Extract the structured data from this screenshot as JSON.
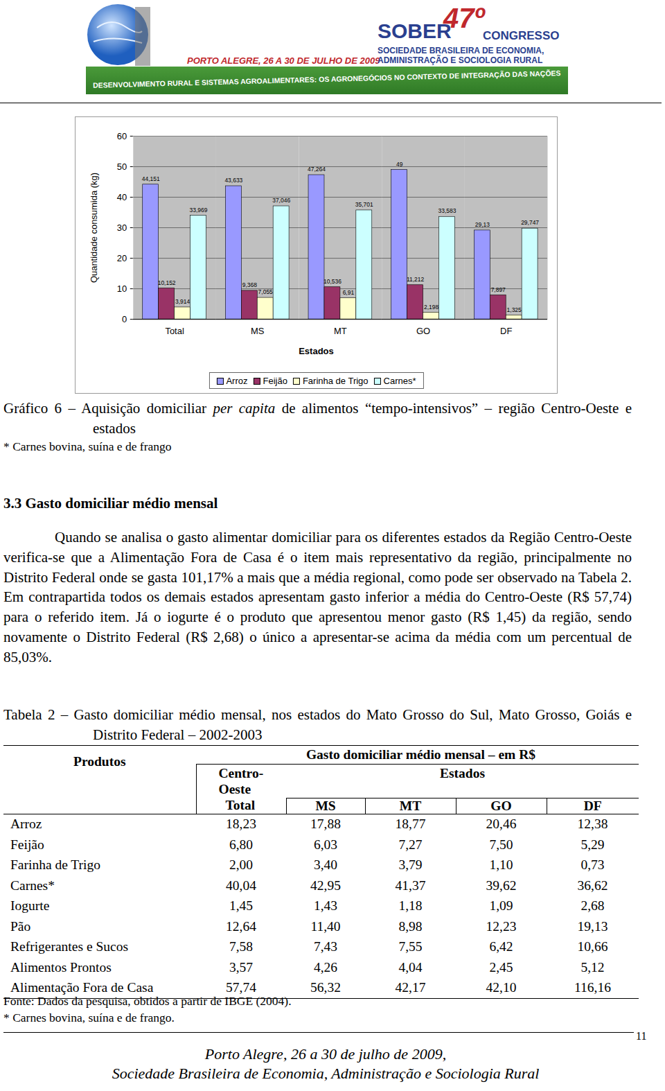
{
  "header": {
    "congress": "SOBER",
    "edition": "47º",
    "event": "CONGRESSO",
    "society": [
      "SOCIEDADE BRASILEIRA DE ECONOMIA,",
      "ADMINISTRAÇÃO E SOCIOLOGIA RURAL"
    ],
    "place_date": "PORTO ALEGRE, 26 A 30 DE JULHO DE 2009",
    "theme": "DESENVOLVIMENTO RURAL E SISTEMAS AGROALIMENTARES: OS AGRONEGÓCIOS NO CONTEXTO DE INTEGRAÇÃO DAS NAÇÕES"
  },
  "chart_data": {
    "type": "bar",
    "x_label": "Estados",
    "y_label": "Quantidade consumida (kg)",
    "categories": [
      "Total",
      "MS",
      "MT",
      "GO",
      "DF"
    ],
    "series": [
      {
        "name": "Arroz",
        "color": "#9999ff",
        "values": [
          44.151,
          43.633,
          47.264,
          49,
          29.13
        ],
        "value_labels": [
          "44,151",
          "43,633",
          "47,264",
          "49",
          "29,13"
        ]
      },
      {
        "name": "Feijão",
        "color": "#993366",
        "values": [
          10.152,
          9.368,
          10.536,
          11.212,
          7.897
        ],
        "value_labels": [
          "10,152",
          "9,368",
          "10,536",
          "11,212",
          "7,897"
        ]
      },
      {
        "name": "Farinha de Trigo",
        "color": "#ffffcc",
        "values": [
          3.914,
          7.055,
          6.91,
          2.198,
          1.325
        ],
        "value_labels": [
          "3,914",
          "7,055",
          "6,91",
          "2,198",
          "1,325"
        ]
      },
      {
        "name": "Carnes*",
        "color": "#ccffff",
        "values": [
          33.969,
          37.046,
          35.701,
          33.583,
          29.747
        ],
        "value_labels": [
          "33,969",
          "37,046",
          "35,701",
          "33,583",
          "29,747"
        ]
      }
    ],
    "ylim": [
      0,
      60
    ],
    "yticks": [
      0,
      10,
      20,
      30,
      40,
      50,
      60
    ],
    "grid": true,
    "legend": "bottom",
    "data_labels": true
  },
  "chart_caption": {
    "label": "Gráfico 6 –",
    "before": "Aquisição domiciliar",
    "italic": "per capita",
    "after": "de alimentos “tempo-intensivos” – região Centro-Oeste e estados"
  },
  "chart_note": "* Carnes bovina, suína e de frango",
  "section": {
    "title": "3.3 Gasto domiciliar médio mensal",
    "paragraph": "Quando se analisa o gasto alimentar domiciliar para os diferentes estados da Região Centro-Oeste verifica-se que a Alimentação Fora de Casa é o item mais representativo da região, principalmente no Distrito Federal onde se gasta 101,17% a mais que a média regional, como pode ser observado na Tabela 2. Em contrapartida todos os demais estados apresentam gasto inferior a média do Centro-Oeste (R$ 57,74) para o referido item. Já o iogurte é o produto que apresentou menor gasto (R$ 1,45) da região, sendo novamente o Distrito Federal (R$ 2,68) o único a apresentar-se acima da média com um percentual de 85,03%."
  },
  "table": {
    "caption": {
      "label": "Tabela 2 –",
      "text": "Gasto domiciliar médio mensal, nos estados do Mato Grosso do Sul, Mato Grosso, Goiás e Distrito Federal – 2002-2003"
    },
    "header": {
      "products": "Produtos",
      "group": "Gasto domiciliar médio mensal – em R$",
      "region": "Centro-Oeste",
      "states_group": "Estados",
      "columns": [
        "Total",
        "MS",
        "MT",
        "GO",
        "DF"
      ]
    },
    "rows": [
      [
        "Arroz",
        "18,23",
        "17,88",
        "18,77",
        "20,46",
        "12,38"
      ],
      [
        "Feijão",
        "6,80",
        "6,03",
        "7,27",
        "7,50",
        "5,29"
      ],
      [
        "Farinha de Trigo",
        "2,00",
        "3,40",
        "3,79",
        "1,10",
        "0,73"
      ],
      [
        "Carnes*",
        "40,04",
        "42,95",
        "41,37",
        "39,62",
        "36,62"
      ],
      [
        "Iogurte",
        "1,45",
        "1,43",
        "1,18",
        "1,09",
        "2,68"
      ],
      [
        "Pão",
        "12,64",
        "11,40",
        "8,98",
        "12,23",
        "19,13"
      ],
      [
        "Refrigerantes e Sucos",
        "7,58",
        "7,43",
        "7,55",
        "6,42",
        "10,66"
      ],
      [
        "Alimentos Prontos",
        "3,57",
        "4,26",
        "4,04",
        "2,45",
        "5,12"
      ],
      [
        "Alimentação Fora de Casa",
        "57,74",
        "56,32",
        "42,17",
        "42,10",
        "116,16"
      ]
    ],
    "source": "Fonte: Dados da pesquisa, obtidos a partir de IBGE (2004).",
    "note": "* Carnes bovina, suína e de frango."
  },
  "footer": {
    "lines": [
      "Porto Alegre, 26 a 30 de julho de 2009,",
      "Sociedade Brasileira de Economia, Administração e Sociologia Rural"
    ],
    "page": "11"
  }
}
